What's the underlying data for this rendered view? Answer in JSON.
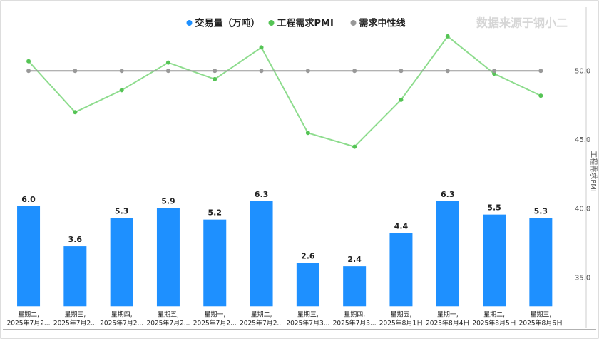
{
  "chart_data": {
    "type": "bar-line",
    "watermark": "数据来源于钢小二",
    "y2label": "工程需求PMI",
    "categories": [
      [
        "星期二,",
        "2025年7月2..."
      ],
      [
        "星期三,",
        "2025年7月2..."
      ],
      [
        "星期四,",
        "2025年7月2..."
      ],
      [
        "星期五,",
        "2025年7月2..."
      ],
      [
        "星期一,",
        "2025年7月2..."
      ],
      [
        "星期二,",
        "2025年7月2..."
      ],
      [
        "星期三,",
        "2025年7月3..."
      ],
      [
        "星期四,",
        "2025年7月3..."
      ],
      [
        "星期五,",
        "2025年8月1日"
      ],
      [
        "星期一,",
        "2025年8月4日"
      ],
      [
        "星期二,",
        "2025年8月5日"
      ],
      [
        "星期三,",
        "2025年8月6日"
      ]
    ],
    "ylim": [
      -1.1,
      17.5
    ],
    "y2lim": [
      31.6,
      54.1
    ],
    "y2ticks": [
      {
        "value": 35,
        "label": "35.0"
      },
      {
        "value": 40,
        "label": "40.0"
      },
      {
        "value": 45,
        "label": "45.0"
      },
      {
        "value": 50,
        "label": "50.0"
      }
    ],
    "grid": false,
    "legend": "top",
    "series": [
      {
        "name": "交易量（万吨）",
        "type": "bar",
        "color": "#1e90ff",
        "values": [
          6.0,
          3.6,
          5.3,
          5.9,
          5.2,
          6.3,
          2.6,
          2.4,
          4.4,
          6.3,
          5.5,
          5.3
        ],
        "value_labels": [
          "6.0",
          "3.6",
          "5.3",
          "5.9",
          "5.2",
          "6.3",
          "2.6",
          "2.4",
          "4.4",
          "6.3",
          "5.5",
          "5.3"
        ]
      },
      {
        "name": "工程需求PMI",
        "type": "line",
        "axis": "y2",
        "color": "#55c455",
        "line_color": "#8ddc8d",
        "values": [
          50.7,
          47.0,
          48.6,
          50.6,
          49.4,
          51.7,
          45.5,
          44.5,
          47.9,
          52.5,
          49.8,
          48.2
        ]
      },
      {
        "name": "需求中性线",
        "type": "line",
        "axis": "y2",
        "color": "#999999",
        "line_color": "#999999",
        "values": [
          50,
          50,
          50,
          50,
          50,
          50,
          50,
          50,
          50,
          50,
          50,
          50
        ]
      }
    ]
  }
}
